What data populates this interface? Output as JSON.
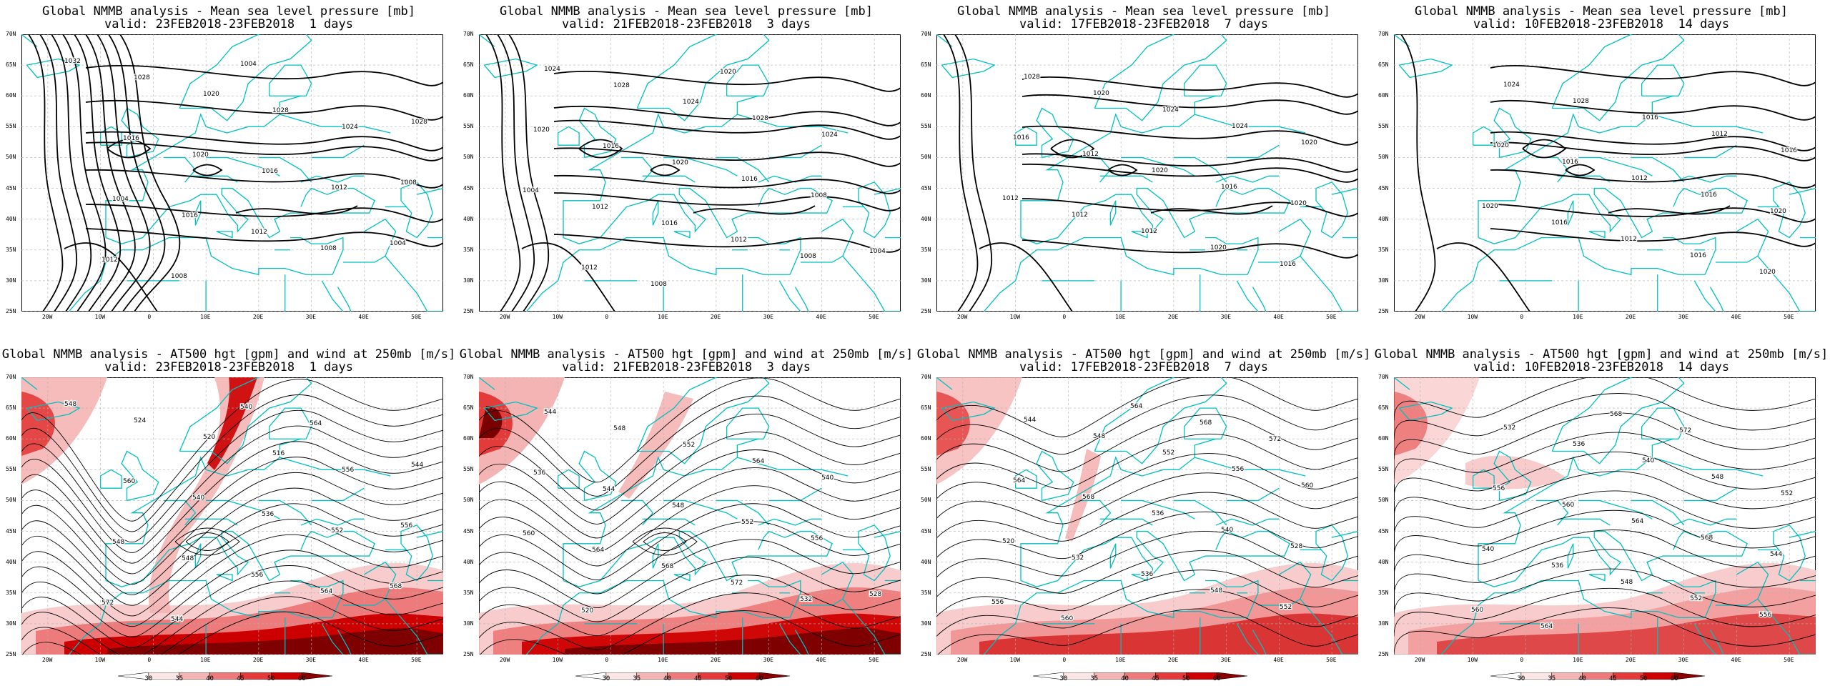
{
  "panels": [
    {
      "row": 0,
      "col": 0,
      "title1": "Global NMMB analysis - Mean sea level pressure [mb]",
      "title2": "valid: 23FEB2018-23FEB2018  1 days",
      "kind": "mslp",
      "contour_labels": [
        "1032",
        "1028",
        "1020",
        "1028",
        "1024",
        "1028",
        "1016",
        "1020",
        "1016",
        "1012",
        "1008",
        "1004",
        "1016",
        "1012",
        "1008",
        "1004",
        "1012",
        "1008",
        "1004"
      ]
    },
    {
      "row": 0,
      "col": 1,
      "title1": "Global NMMB analysis - Mean sea level pressure [mb]",
      "title2": "valid: 21FEB2018-23FEB2018  3 days",
      "kind": "mslp",
      "contour_labels": [
        "1024",
        "1028",
        "1024",
        "1028",
        "1024",
        "1020",
        "1016",
        "1020",
        "1016",
        "1008",
        "1004",
        "1012",
        "1016",
        "1012",
        "1008",
        "1004",
        "1012",
        "1008",
        "1020"
      ]
    },
    {
      "row": 0,
      "col": 2,
      "title1": "Global NMMB analysis - Mean sea level pressure [mb]",
      "title2": "valid: 17FEB2018-23FEB2018  7 days",
      "kind": "mslp",
      "contour_labels": [
        "1028",
        "1020",
        "1024",
        "1024",
        "1020",
        "1016",
        "1012",
        "1020",
        "1016",
        "1020",
        "1012",
        "1012",
        "1012",
        "1020",
        "1016"
      ]
    },
    {
      "row": 0,
      "col": 3,
      "title1": "Global NMMB analysis - Mean sea level pressure [mb]",
      "title2": "valid: 10FEB2018-23FEB2018  14 days",
      "kind": "mslp",
      "contour_labels": [
        "1024",
        "1028",
        "1016",
        "1012",
        "1016",
        "1020",
        "1016",
        "1012",
        "1016",
        "1020",
        "1020",
        "1016",
        "1012",
        "1016",
        "1020"
      ]
    },
    {
      "row": 1,
      "col": 0,
      "title1": "Global NMMB analysis - AT500 hgt [gpm] and wind at 250mb [m/s]",
      "title2": "valid: 23FEB2018-23FEB2018  1 days",
      "kind": "z500",
      "contour_labels": [
        "548",
        "524",
        "520",
        "516",
        "556",
        "544",
        "560",
        "540",
        "536",
        "552",
        "556",
        "548",
        "548",
        "556",
        "564",
        "568",
        "572",
        "544",
        "540",
        "564"
      ]
    },
    {
      "row": 1,
      "col": 1,
      "title1": "Global NMMB analysis - AT500 hgt [gpm] and wind at 250mb [m/s]",
      "title2": "valid: 21FEB2018-23FEB2018  3 days",
      "kind": "z500",
      "contour_labels": [
        "544",
        "548",
        "552",
        "564",
        "540",
        "536",
        "544",
        "548",
        "552",
        "556",
        "560",
        "564",
        "568",
        "572",
        "532",
        "528",
        "520"
      ]
    },
    {
      "row": 1,
      "col": 2,
      "title1": "Global NMMB analysis - AT500 hgt [gpm] and wind at 250mb [m/s]",
      "title2": "valid: 17FEB2018-23FEB2018  7 days",
      "kind": "z500",
      "contour_labels": [
        "544",
        "548",
        "552",
        "556",
        "560",
        "564",
        "568",
        "536",
        "540",
        "528",
        "520",
        "532",
        "536",
        "548",
        "552",
        "556",
        "560",
        "564",
        "568",
        "572"
      ]
    },
    {
      "row": 1,
      "col": 3,
      "title1": "Global NMMB analysis - AT500 hgt [gpm] and wind at 250mb [m/s]",
      "title2": "valid: 10FEB2018-23FEB2018  14 days",
      "kind": "z500",
      "contour_labels": [
        "532",
        "536",
        "540",
        "548",
        "552",
        "556",
        "560",
        "564",
        "568",
        "544",
        "540",
        "536",
        "548",
        "552",
        "556",
        "560",
        "564",
        "568",
        "572"
      ]
    }
  ],
  "lat_labels": [
    "70N",
    "65N",
    "60N",
    "55N",
    "50N",
    "45N",
    "40N",
    "35N",
    "30N",
    "25N"
  ],
  "lon_labels": [
    "20W",
    "10W",
    "0",
    "10E",
    "20E",
    "30E",
    "40E",
    "50E"
  ],
  "colorbar": {
    "ticks": [
      "30",
      "35",
      "40",
      "45",
      "50",
      "60"
    ],
    "colors": [
      "#ffffff",
      "#fbe5e5",
      "#f5b4b4",
      "#ee7b7b",
      "#e33a3a",
      "#cc0000",
      "#8b0000"
    ]
  },
  "colors": {
    "coast": "#00c0c0",
    "contour": "#000000",
    "grid": "#b0b0b0",
    "wind_low": "#f7c6c6",
    "wind_high": "#7a0000"
  }
}
